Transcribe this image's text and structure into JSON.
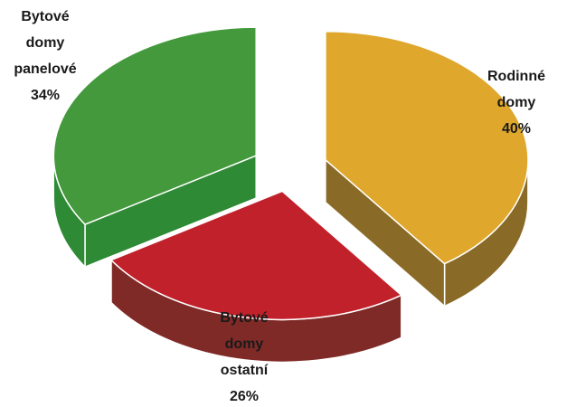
{
  "chart_data": {
    "type": "pie",
    "style": "3d-exploded",
    "slices": [
      {
        "label_lines": [
          "Rodinné",
          "domy"
        ],
        "percent_text": "40%",
        "value": 40,
        "top_color": "#dfa72c",
        "side_color": "#8a6a27"
      },
      {
        "label_lines": [
          "Bytové",
          "domy",
          "ostatní"
        ],
        "percent_text": "26%",
        "value": 26,
        "top_color": "#c1212a",
        "side_color": "#7f2a27"
      },
      {
        "label_lines": [
          "Bytové",
          "domy",
          "panelové"
        ],
        "percent_text": "34%",
        "value": 34,
        "top_color": "#43993b",
        "side_color": "#2e8a35"
      }
    ]
  }
}
